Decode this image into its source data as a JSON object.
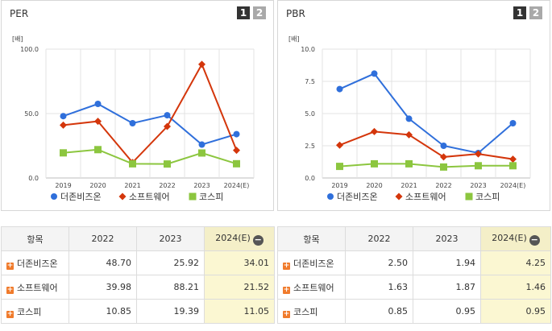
{
  "legend_icons": {
    "circle": "circle-marker-icon",
    "diamond": "diamond-marker-icon",
    "square": "square-marker-icon"
  },
  "pager": {
    "page1": "1",
    "page2": "2"
  },
  "table_header": {
    "item": "항목",
    "y2022": "2022",
    "y2023": "2023",
    "y2024": "2024(E)"
  },
  "colors": {
    "blue": "#2f6fdb",
    "red": "#d4360b",
    "green": "#8cc63f",
    "grid": "#e3e3e3"
  },
  "chart_data": [
    {
      "type": "line",
      "title": "PER",
      "unit": "[배]",
      "categories": [
        "2019",
        "2020",
        "2021",
        "2022",
        "2023",
        "2024(E)"
      ],
      "ylim": [
        0,
        100
      ],
      "yticks": [
        "0.0",
        "50.0",
        "100.0"
      ],
      "yticks_values": [
        0,
        50,
        100
      ],
      "series": [
        {
          "name": "더존비즈온",
          "marker": "circle",
          "color": "#2f6fdb",
          "values": [
            48.0,
            57.5,
            42.5,
            48.7,
            25.92,
            34.01
          ]
        },
        {
          "name": "소프트웨어",
          "marker": "diamond",
          "color": "#d4360b",
          "values": [
            41.0,
            44.0,
            12.0,
            39.98,
            88.21,
            21.52
          ]
        },
        {
          "name": "코스피",
          "marker": "square",
          "color": "#8cc63f",
          "values": [
            19.5,
            22.0,
            11.0,
            10.85,
            19.39,
            11.05
          ]
        }
      ],
      "table": [
        {
          "name": "더존비즈온",
          "v2022": "48.70",
          "v2023": "25.92",
          "v2024": "34.01"
        },
        {
          "name": "소프트웨어",
          "v2022": "39.98",
          "v2023": "88.21",
          "v2024": "21.52"
        },
        {
          "name": "코스피",
          "v2022": "10.85",
          "v2023": "19.39",
          "v2024": "11.05"
        }
      ]
    },
    {
      "type": "line",
      "title": "PBR",
      "unit": "[배]",
      "categories": [
        "2019",
        "2020",
        "2021",
        "2022",
        "2023",
        "2024(E)"
      ],
      "ylim": [
        0,
        10
      ],
      "yticks": [
        "0.0",
        "2.5",
        "5.0",
        "7.5",
        "10.0"
      ],
      "yticks_values": [
        0,
        2.5,
        5,
        7.5,
        10
      ],
      "series": [
        {
          "name": "더존비즈온",
          "marker": "circle",
          "color": "#2f6fdb",
          "values": [
            6.9,
            8.1,
            4.6,
            2.5,
            1.94,
            4.25
          ]
        },
        {
          "name": "소프트웨어",
          "marker": "diamond",
          "color": "#d4360b",
          "values": [
            2.55,
            3.6,
            3.35,
            1.63,
            1.87,
            1.46
          ]
        },
        {
          "name": "코스피",
          "marker": "square",
          "color": "#8cc63f",
          "values": [
            0.9,
            1.1,
            1.1,
            0.85,
            0.95,
            0.95
          ]
        }
      ],
      "table": [
        {
          "name": "더존비즈온",
          "v2022": "2.50",
          "v2023": "1.94",
          "v2024": "4.25"
        },
        {
          "name": "소프트웨어",
          "v2022": "1.63",
          "v2023": "1.87",
          "v2024": "1.46"
        },
        {
          "name": "코스피",
          "v2022": "0.85",
          "v2023": "0.95",
          "v2024": "0.95"
        }
      ]
    }
  ]
}
